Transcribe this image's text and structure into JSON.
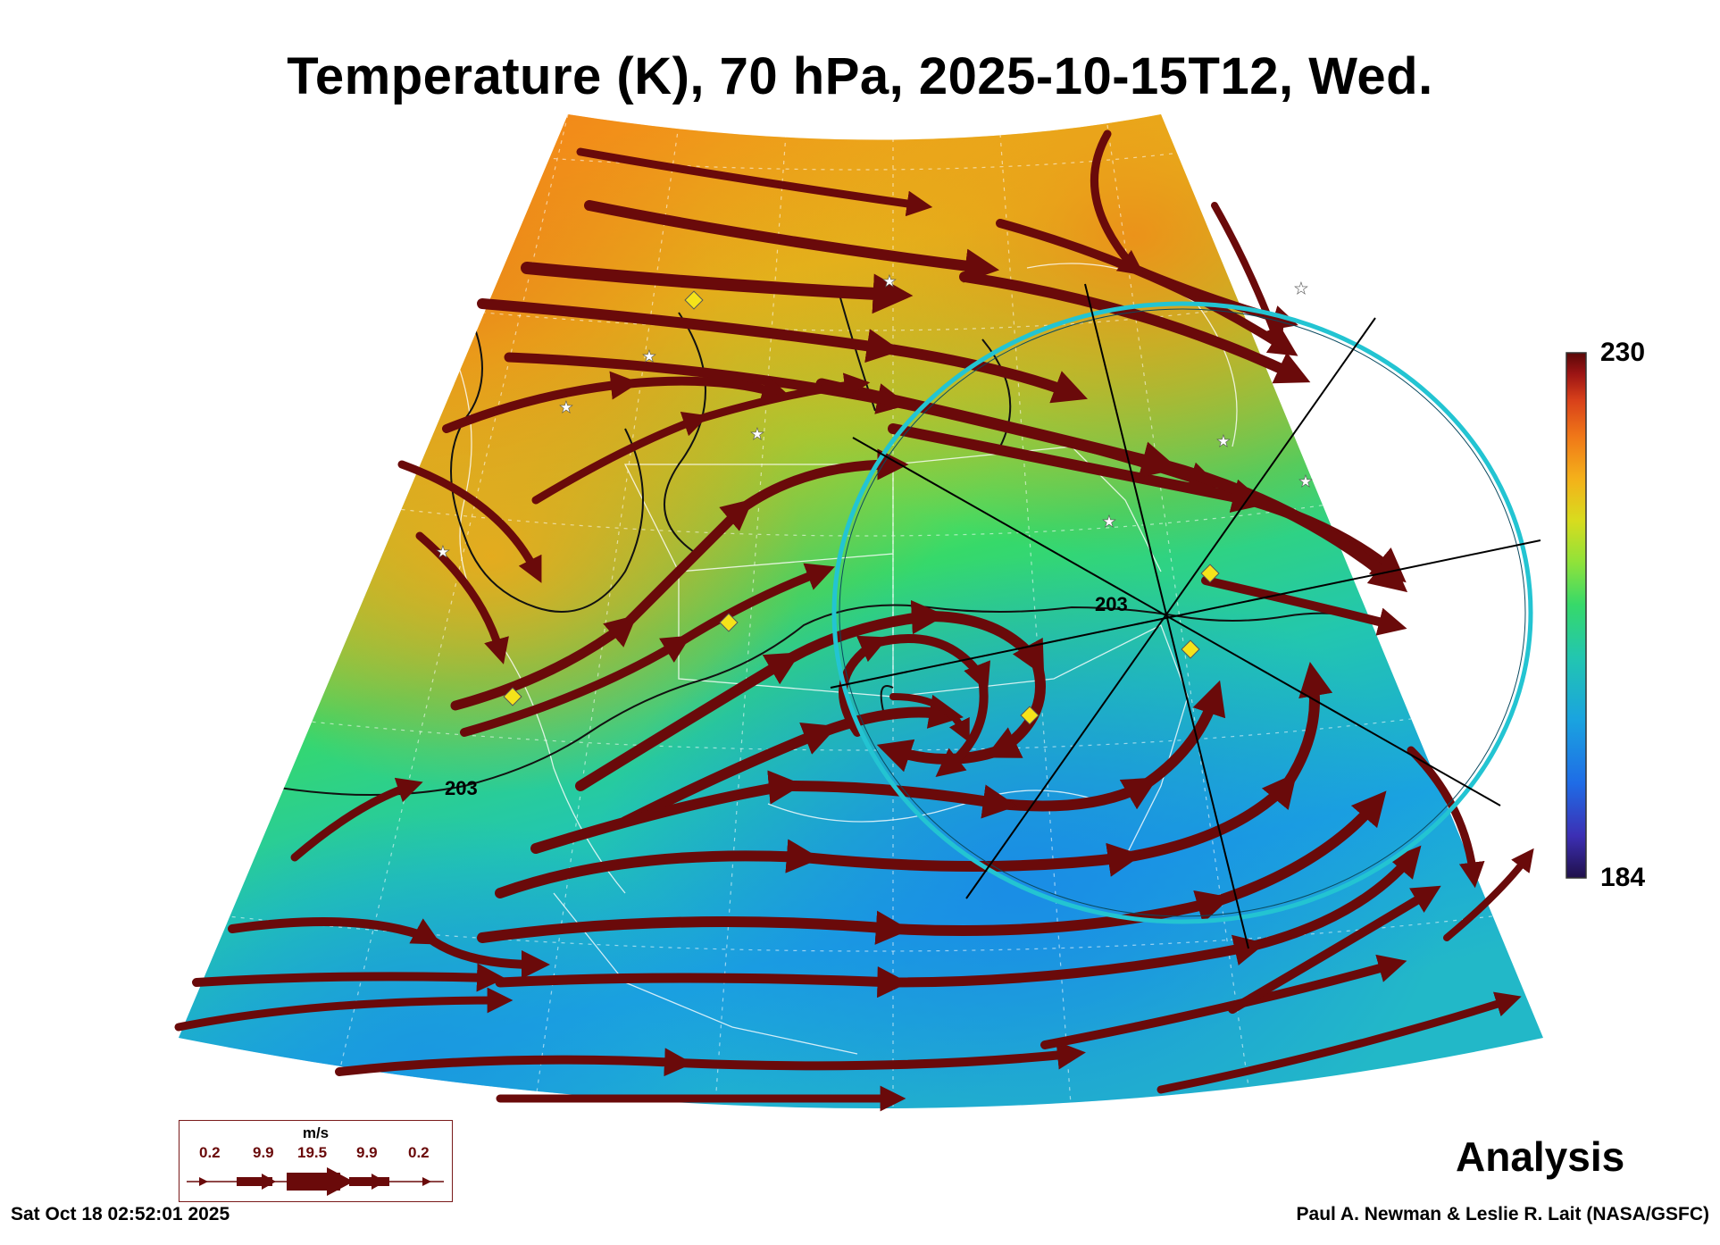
{
  "title": "Temperature (K), 70 hPa, 2025-10-15T12, Wed.",
  "colorbar": {
    "max_label": "230",
    "min_label": "184",
    "max": 230,
    "min": 184,
    "colors": [
      "#20104a",
      "#3c2fb4",
      "#1f6ce6",
      "#1aa3e0",
      "#22c6b0",
      "#36d96a",
      "#8fe23a",
      "#d8dc1e",
      "#f4b11a",
      "#f07818",
      "#d8401a",
      "#9c1414",
      "#5a0808"
    ]
  },
  "contour_label": "203",
  "legend": {
    "unit": "m/s",
    "values": [
      "0.2",
      "9.9",
      "19.5",
      "9.9",
      "0.2"
    ]
  },
  "analysis_label": "Analysis",
  "footer": {
    "timestamp": "Sat Oct 18 02:52:01 2025",
    "credit": "Paul A. Newman & Leslie R. Lait (NASA/GSFC)"
  },
  "colors": {
    "streamline": "#6a0a0a",
    "ring": "#23c4d2",
    "marker": "#f5e31a"
  }
}
